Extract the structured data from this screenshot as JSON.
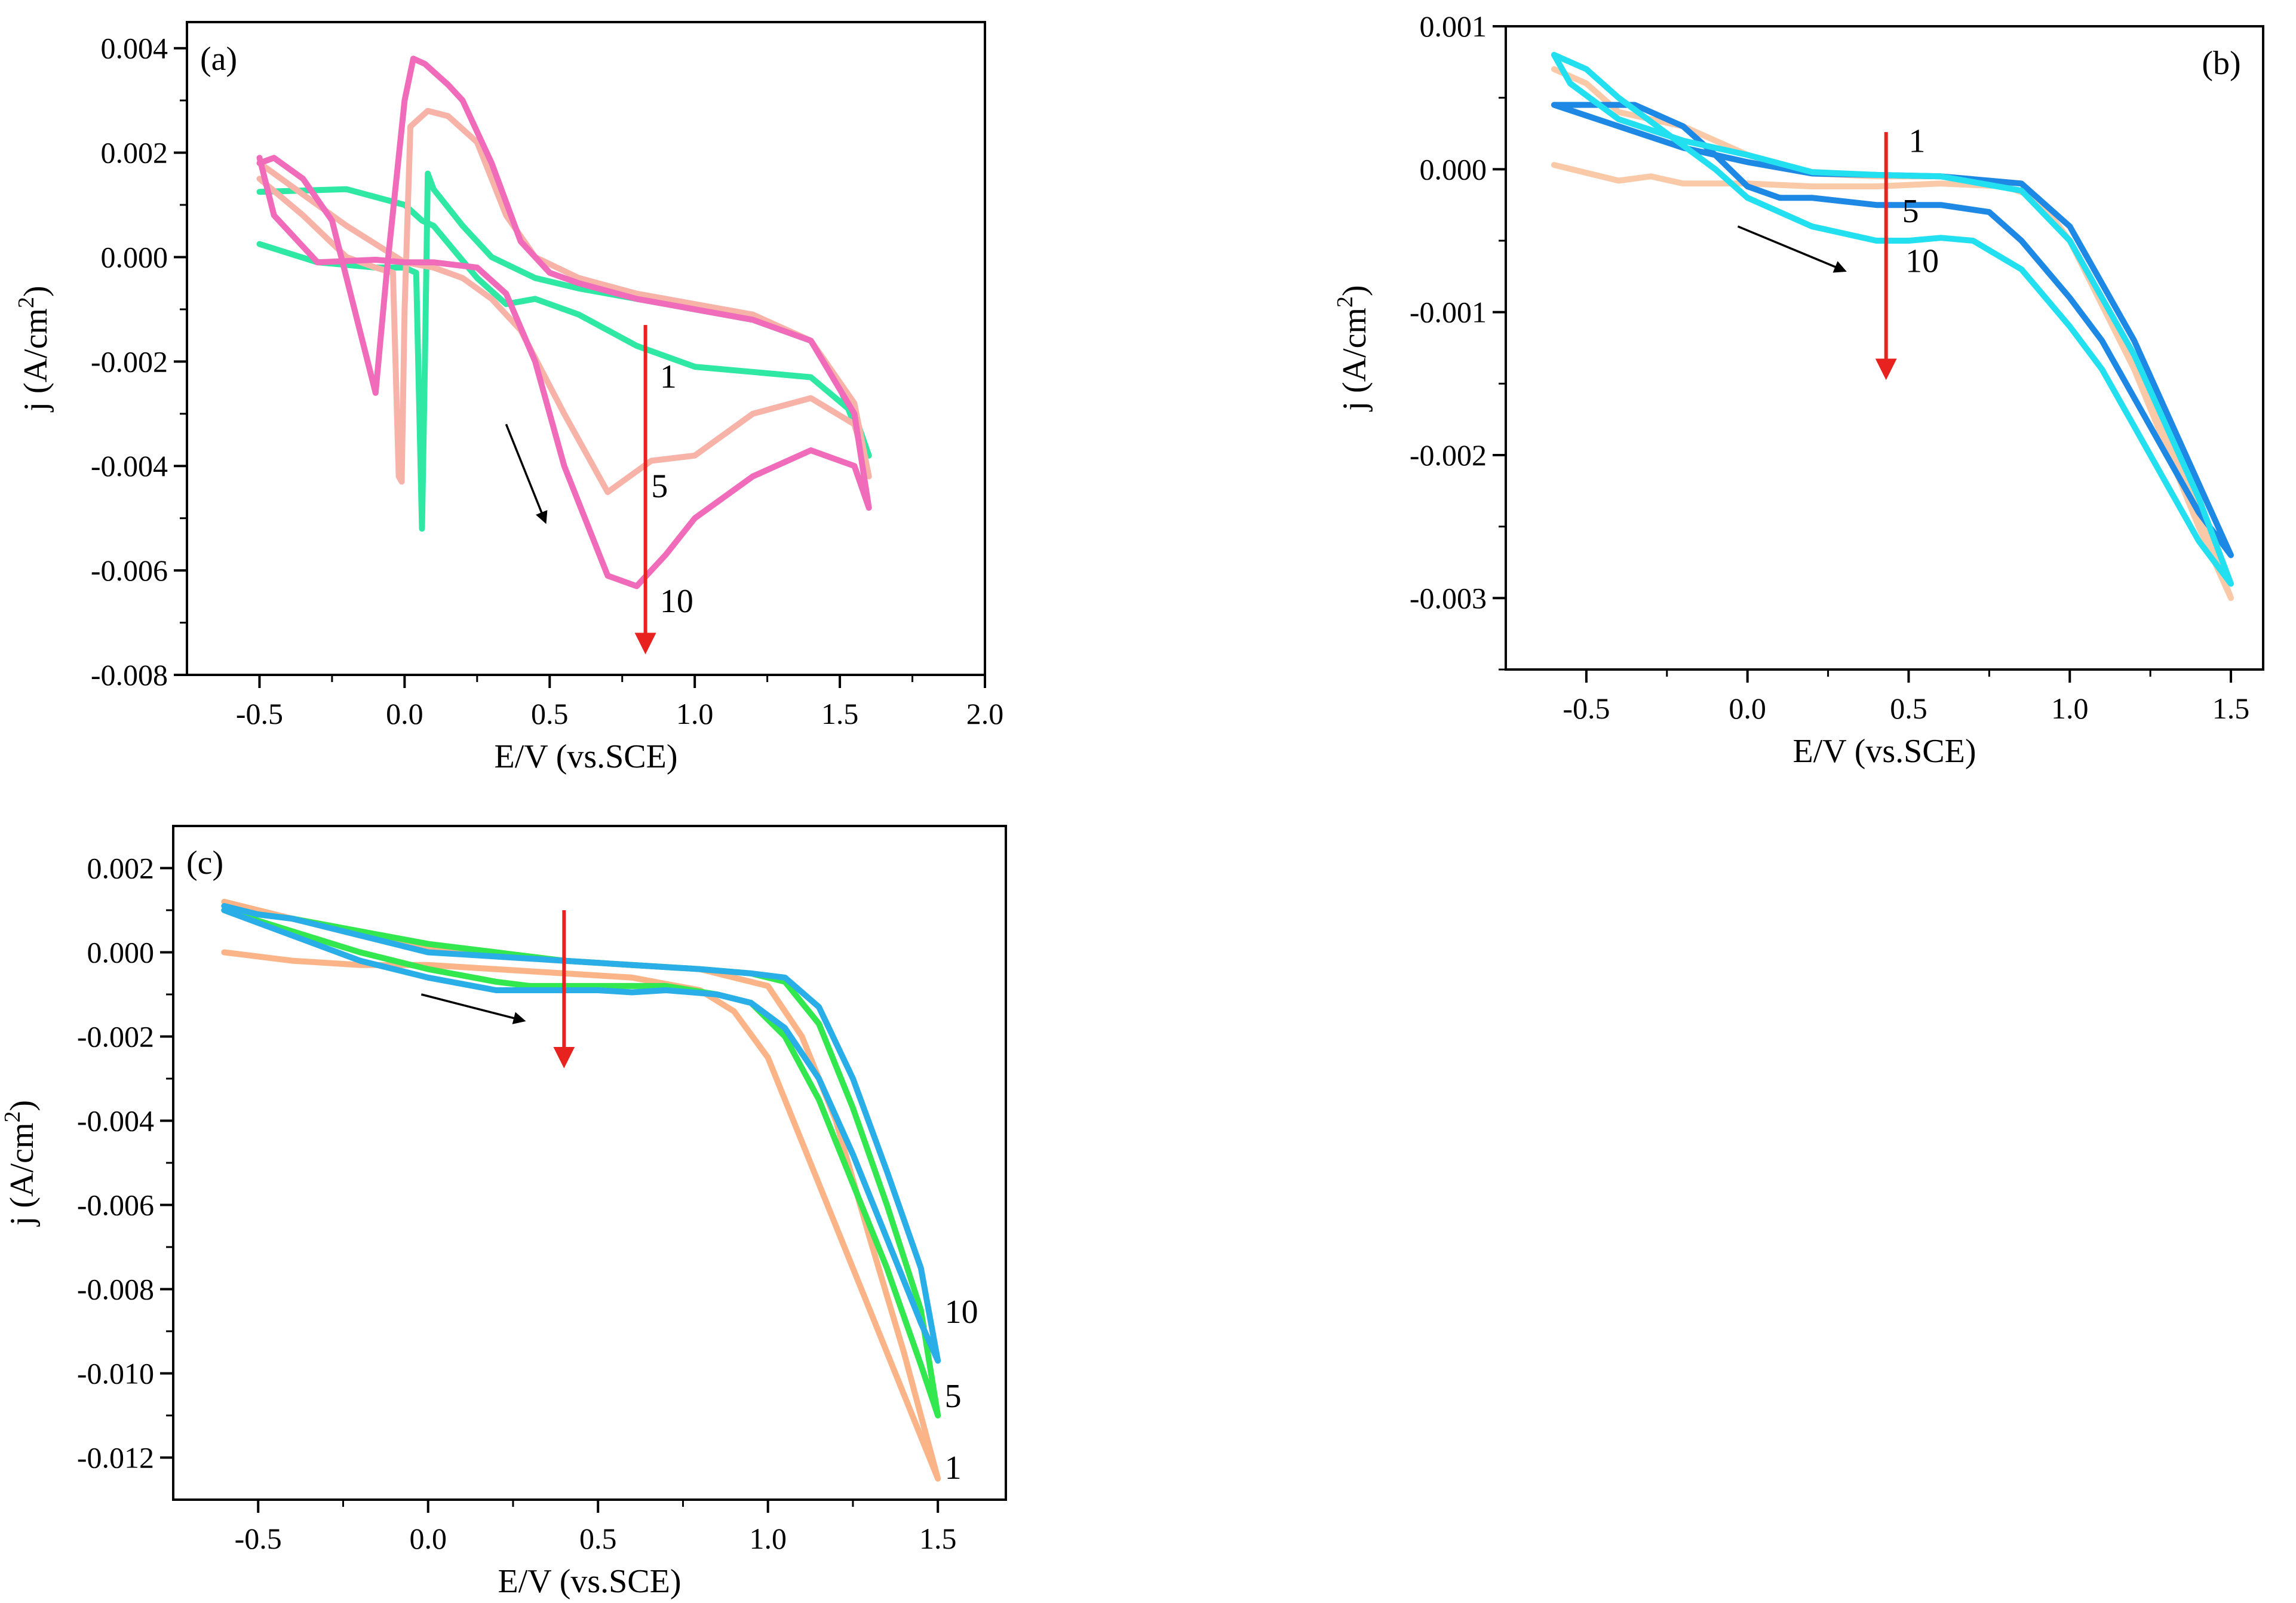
{
  "chart_data": [
    {
      "type": "line",
      "panel_label": "(a)",
      "xlabel": "E/V (vs.SCE)",
      "ylabel_main": "j (A/cm",
      "ylabel_sup": "2",
      "ylabel_close": ")",
      "xlim": [
        -0.75,
        2.0
      ],
      "ylim": [
        -0.008,
        0.0045
      ],
      "xticks": [
        -0.5,
        0.0,
        0.5,
        1.0,
        1.5,
        2.0
      ],
      "xtick_labels": [
        "-0.5",
        "0.0",
        "0.5",
        "1.0",
        "1.5",
        "2.0"
      ],
      "yticks": [
        0.004,
        0.002,
        0.0,
        -0.002,
        -0.004,
        -0.006,
        -0.008
      ],
      "ytick_labels": [
        "0.004",
        "0.002",
        "0.000",
        "-0.002",
        "-0.004",
        "-0.006",
        "-0.008"
      ],
      "series": [
        {
          "name": "1",
          "color": "#2EE8A4",
          "x": [
            -0.5,
            -0.3,
            -0.1,
            0.0,
            0.04,
            0.06,
            0.07,
            0.08,
            0.1,
            0.2,
            0.3,
            0.45,
            0.6,
            0.8,
            1.0,
            1.2,
            1.4,
            1.5,
            1.55,
            1.6,
            1.55,
            1.4,
            1.2,
            1.0,
            0.8,
            0.6,
            0.45,
            0.35,
            0.25,
            0.1,
            0.06,
            0.0,
            -0.2,
            -0.5
          ],
          "y": [
            0.00025,
            -0.0001,
            -0.0002,
            -0.0002,
            -0.0003,
            -0.0052,
            -0.002,
            0.0016,
            0.0013,
            0.0006,
            0.0,
            -0.0004,
            -0.0006,
            -0.0008,
            -0.001,
            -0.0012,
            -0.0016,
            -0.0025,
            -0.0032,
            -0.0038,
            -0.003,
            -0.0023,
            -0.0022,
            -0.0021,
            -0.0017,
            -0.0011,
            -0.0008,
            -0.0009,
            -0.0004,
            0.0006,
            0.0007,
            0.001,
            0.0013,
            0.00125
          ]
        },
        {
          "name": "5",
          "color": "#F7B3A8",
          "x": [
            -0.5,
            -0.35,
            -0.2,
            -0.1,
            -0.04,
            -0.02,
            -0.01,
            0.0,
            0.02,
            0.08,
            0.15,
            0.25,
            0.35,
            0.45,
            0.6,
            0.8,
            1.0,
            1.2,
            1.4,
            1.55,
            1.6,
            1.55,
            1.4,
            1.2,
            1.0,
            0.85,
            0.7,
            0.55,
            0.4,
            0.3,
            0.2,
            0.1,
            0.0,
            -0.2,
            -0.35,
            -0.5
          ],
          "y": [
            0.0015,
            0.0008,
            0.0,
            -0.0002,
            -0.0003,
            -0.0042,
            -0.0043,
            -0.001,
            0.0025,
            0.0028,
            0.0027,
            0.0022,
            0.0008,
            0.0,
            -0.0004,
            -0.0007,
            -0.0009,
            -0.0011,
            -0.0016,
            -0.0028,
            -0.0042,
            -0.0032,
            -0.0027,
            -0.003,
            -0.0038,
            -0.0039,
            -0.0045,
            -0.003,
            -0.0014,
            -0.0008,
            -0.0004,
            -0.0002,
            -0.0001,
            0.0006,
            0.0012,
            0.0018
          ]
        },
        {
          "name": "10",
          "color": "#F06BBA",
          "x": [
            -0.5,
            -0.45,
            -0.35,
            -0.25,
            -0.15,
            -0.1,
            -0.06,
            0.0,
            0.03,
            0.07,
            0.15,
            0.2,
            0.3,
            0.4,
            0.5,
            0.6,
            0.8,
            1.0,
            1.2,
            1.4,
            1.55,
            1.6,
            1.55,
            1.4,
            1.2,
            1.0,
            0.9,
            0.8,
            0.7,
            0.55,
            0.45,
            0.35,
            0.25,
            0.1,
            0.0,
            -0.1,
            -0.3,
            -0.45,
            -0.5
          ],
          "y": [
            0.0018,
            0.0019,
            0.0015,
            0.0007,
            -0.0015,
            -0.0026,
            -0.0002,
            0.003,
            0.0038,
            0.0037,
            0.0033,
            0.003,
            0.0018,
            0.0003,
            -0.0003,
            -0.0005,
            -0.0008,
            -0.001,
            -0.0012,
            -0.0016,
            -0.003,
            -0.0048,
            -0.004,
            -0.0037,
            -0.0042,
            -0.005,
            -0.0057,
            -0.0063,
            -0.0061,
            -0.004,
            -0.002,
            -0.0007,
            -0.0002,
            -0.0001,
            -0.0001,
            -5e-05,
            -0.0001,
            0.0008,
            0.0019
          ]
        }
      ],
      "curve_labels": [
        {
          "text": "1",
          "x": 0.88,
          "y": -0.0025
        },
        {
          "text": "5",
          "x": 0.85,
          "y": -0.0046
        },
        {
          "text": "10",
          "x": 0.88,
          "y": -0.0068
        }
      ],
      "arrow_red": {
        "x": 0.83,
        "y_from": -0.0013,
        "y_to": -0.0074
      },
      "arrow_black": {
        "x_from": 0.35,
        "y_from": -0.0032,
        "x_to": 0.48,
        "y_to": -0.005
      }
    },
    {
      "type": "line",
      "panel_label": "(b)",
      "xlabel": "E/V (vs.SCE)",
      "ylabel_main": "j (A/cm",
      "ylabel_sup": "2",
      "ylabel_close": ")",
      "xlim": [
        -0.75,
        1.6
      ],
      "ylim": [
        -0.0035,
        0.001
      ],
      "xticks": [
        -0.5,
        0.0,
        0.5,
        1.0,
        1.5
      ],
      "xtick_labels": [
        "-0.5",
        "0.0",
        "0.5",
        "1.0",
        "1.5"
      ],
      "yticks": [
        0.001,
        0.0,
        -0.001,
        -0.002,
        -0.003
      ],
      "ytick_labels": [
        "0.001",
        "0.000",
        "-0.001",
        "-0.002",
        "-0.003"
      ],
      "series": [
        {
          "name": "1",
          "color": "#F9C9A8",
          "x": [
            -0.6,
            -0.4,
            -0.3,
            -0.2,
            0.0,
            0.2,
            0.4,
            0.6,
            0.8,
            0.9,
            1.0,
            1.1,
            1.2,
            1.3,
            1.4,
            1.5,
            1.4,
            1.2,
            1.0,
            0.85,
            0.6,
            0.4,
            0.2,
            0.0,
            -0.2,
            -0.4,
            -0.5,
            -0.6
          ],
          "y": [
            3e-05,
            -8e-05,
            -5e-05,
            -0.0001,
            -0.0001,
            -0.00012,
            -0.00012,
            -0.0001,
            -0.00012,
            -0.0002,
            -0.0005,
            -0.0009,
            -0.0014,
            -0.0019,
            -0.0024,
            -0.003,
            -0.0025,
            -0.0014,
            -0.0005,
            -0.0001,
            -5e-05,
            -5e-05,
            -3e-05,
            0.0001,
            0.0003,
            0.0004,
            0.0006,
            0.0007
          ]
        },
        {
          "name": "5",
          "color": "#1E88E5",
          "x": [
            -0.6,
            -0.45,
            -0.35,
            -0.2,
            -0.1,
            0.0,
            0.1,
            0.2,
            0.4,
            0.6,
            0.75,
            0.85,
            1.0,
            1.1,
            1.2,
            1.3,
            1.4,
            1.5,
            1.4,
            1.2,
            1.0,
            0.85,
            0.6,
            0.4,
            0.2,
            0.0,
            -0.2,
            -0.4,
            -0.6
          ],
          "y": [
            0.00045,
            0.00045,
            0.00045,
            0.0003,
            0.0001,
            -0.00012,
            -0.0002,
            -0.0002,
            -0.00025,
            -0.00025,
            -0.0003,
            -0.0005,
            -0.0009,
            -0.0012,
            -0.0016,
            -0.002,
            -0.0024,
            -0.0027,
            -0.0022,
            -0.0012,
            -0.0004,
            -0.0001,
            -5e-05,
            -4e-05,
            -3e-05,
            5e-05,
            0.00015,
            0.0003,
            0.00045
          ]
        },
        {
          "name": "10",
          "color": "#22E0F0",
          "x": [
            -0.6,
            -0.5,
            -0.4,
            -0.25,
            -0.1,
            0.0,
            0.2,
            0.4,
            0.5,
            0.6,
            0.7,
            0.85,
            1.0,
            1.1,
            1.2,
            1.3,
            1.4,
            1.5,
            1.4,
            1.2,
            1.0,
            0.85,
            0.6,
            0.4,
            0.2,
            0.0,
            -0.2,
            -0.4,
            -0.55,
            -0.6
          ],
          "y": [
            0.0008,
            0.0007,
            0.0005,
            0.00025,
            0.0,
            -0.0002,
            -0.0004,
            -0.0005,
            -0.0005,
            -0.00048,
            -0.0005,
            -0.0007,
            -0.0011,
            -0.0014,
            -0.0018,
            -0.0022,
            -0.0026,
            -0.0029,
            -0.0023,
            -0.0013,
            -0.0005,
            -0.00015,
            -5e-05,
            -4e-05,
            -2e-05,
            0.0001,
            0.0002,
            0.00035,
            0.0006,
            0.0008
          ]
        }
      ],
      "curve_labels": [
        {
          "text": "1",
          "x": 0.5,
          "y": 0.00012
        },
        {
          "text": "5",
          "x": 0.48,
          "y": -0.00037
        },
        {
          "text": "10",
          "x": 0.49,
          "y": -0.00072
        }
      ],
      "arrow_red": {
        "x": 0.43,
        "y_from": 0.00026,
        "y_to": -0.0014
      },
      "arrow_black": {
        "x_from": -0.03,
        "y_from": -0.0004,
        "x_to": 0.29,
        "y_to": -0.0007
      }
    },
    {
      "type": "line",
      "panel_label": "(c)",
      "xlabel": "E/V (vs.SCE)",
      "ylabel_main": "j (A/cm",
      "ylabel_sup": "2",
      "ylabel_close": ")",
      "xlim": [
        -0.75,
        1.7
      ],
      "ylim": [
        -0.013,
        0.003
      ],
      "xticks": [
        -0.5,
        0.0,
        0.5,
        1.0,
        1.5
      ],
      "xtick_labels": [
        "-0.5",
        "0.0",
        "0.5",
        "1.0",
        "1.5"
      ],
      "yticks": [
        0.002,
        0.0,
        -0.002,
        -0.004,
        -0.006,
        -0.008,
        -0.01,
        -0.012
      ],
      "ytick_labels": [
        "0.002",
        "0.000",
        "-0.002",
        "-0.004",
        "-0.006",
        "-0.008",
        "-0.010",
        "-0.012"
      ],
      "series": [
        {
          "name": "1",
          "color": "#FAB487",
          "x": [
            -0.6,
            -0.4,
            -0.2,
            0.0,
            0.2,
            0.4,
            0.6,
            0.8,
            0.9,
            1.0,
            1.1,
            1.2,
            1.3,
            1.4,
            1.5,
            1.4,
            1.3,
            1.2,
            1.1,
            1.0,
            0.8,
            0.6,
            0.4,
            0.2,
            0.0,
            -0.2,
            -0.4,
            -0.6
          ],
          "y": [
            0.0,
            -0.0002,
            -0.0003,
            -0.0003,
            -0.0004,
            -0.0005,
            -0.0006,
            -0.0009,
            -0.0014,
            -0.0025,
            -0.0045,
            -0.0065,
            -0.0085,
            -0.0105,
            -0.0125,
            -0.0095,
            -0.0068,
            -0.004,
            -0.002,
            -0.0008,
            -0.0004,
            -0.0003,
            -0.0002,
            -0.0001,
            0.0001,
            0.0004,
            0.0008,
            0.0012
          ]
        },
        {
          "name": "5",
          "color": "#33E84F",
          "x": [
            -0.6,
            -0.4,
            -0.2,
            0.0,
            0.2,
            0.3,
            0.5,
            0.7,
            0.85,
            0.95,
            1.05,
            1.15,
            1.25,
            1.35,
            1.45,
            1.5,
            1.45,
            1.35,
            1.25,
            1.15,
            1.05,
            0.95,
            0.8,
            0.6,
            0.4,
            0.2,
            0.0,
            -0.2,
            -0.4,
            -0.6
          ],
          "y": [
            0.001,
            0.0005,
            0.0,
            -0.0004,
            -0.0007,
            -0.0008,
            -0.0008,
            -0.0008,
            -0.001,
            -0.0012,
            -0.002,
            -0.0035,
            -0.0055,
            -0.0075,
            -0.0098,
            -0.011,
            -0.0085,
            -0.006,
            -0.0037,
            -0.0017,
            -0.0007,
            -0.0005,
            -0.0004,
            -0.0003,
            -0.0002,
            0.0,
            0.0002,
            0.0005,
            0.0008,
            0.001
          ]
        },
        {
          "name": "10",
          "color": "#29AEE8",
          "x": [
            -0.6,
            -0.4,
            -0.2,
            0.0,
            0.2,
            0.3,
            0.5,
            0.6,
            0.7,
            0.85,
            0.95,
            1.05,
            1.15,
            1.25,
            1.35,
            1.45,
            1.5,
            1.45,
            1.35,
            1.25,
            1.15,
            1.05,
            0.95,
            0.8,
            0.6,
            0.4,
            0.2,
            0.0,
            -0.2,
            -0.4,
            -0.5,
            -0.6
          ],
          "y": [
            0.001,
            0.0004,
            -0.0002,
            -0.0006,
            -0.0009,
            -0.0009,
            -0.0009,
            -0.00095,
            -0.0009,
            -0.001,
            -0.0012,
            -0.0018,
            -0.003,
            -0.0048,
            -0.0068,
            -0.0088,
            -0.0097,
            -0.0075,
            -0.0052,
            -0.003,
            -0.0013,
            -0.0006,
            -0.0005,
            -0.0004,
            -0.0003,
            -0.0002,
            -0.0001,
            0.0,
            0.0004,
            0.0008,
            0.0009,
            0.0011
          ]
        }
      ],
      "curve_labels": [
        {
          "text": "10",
          "x": 1.52,
          "y": -0.0088
        },
        {
          "text": "5",
          "x": 1.52,
          "y": -0.0108
        },
        {
          "text": "1",
          "x": 1.52,
          "y": -0.0125
        }
      ],
      "arrow_red": {
        "x": 0.4,
        "y_from": 0.001,
        "y_to": -0.0025
      },
      "arrow_black": {
        "x_from": -0.02,
        "y_from": -0.001,
        "x_to": 0.27,
        "y_to": -0.0016
      }
    }
  ]
}
